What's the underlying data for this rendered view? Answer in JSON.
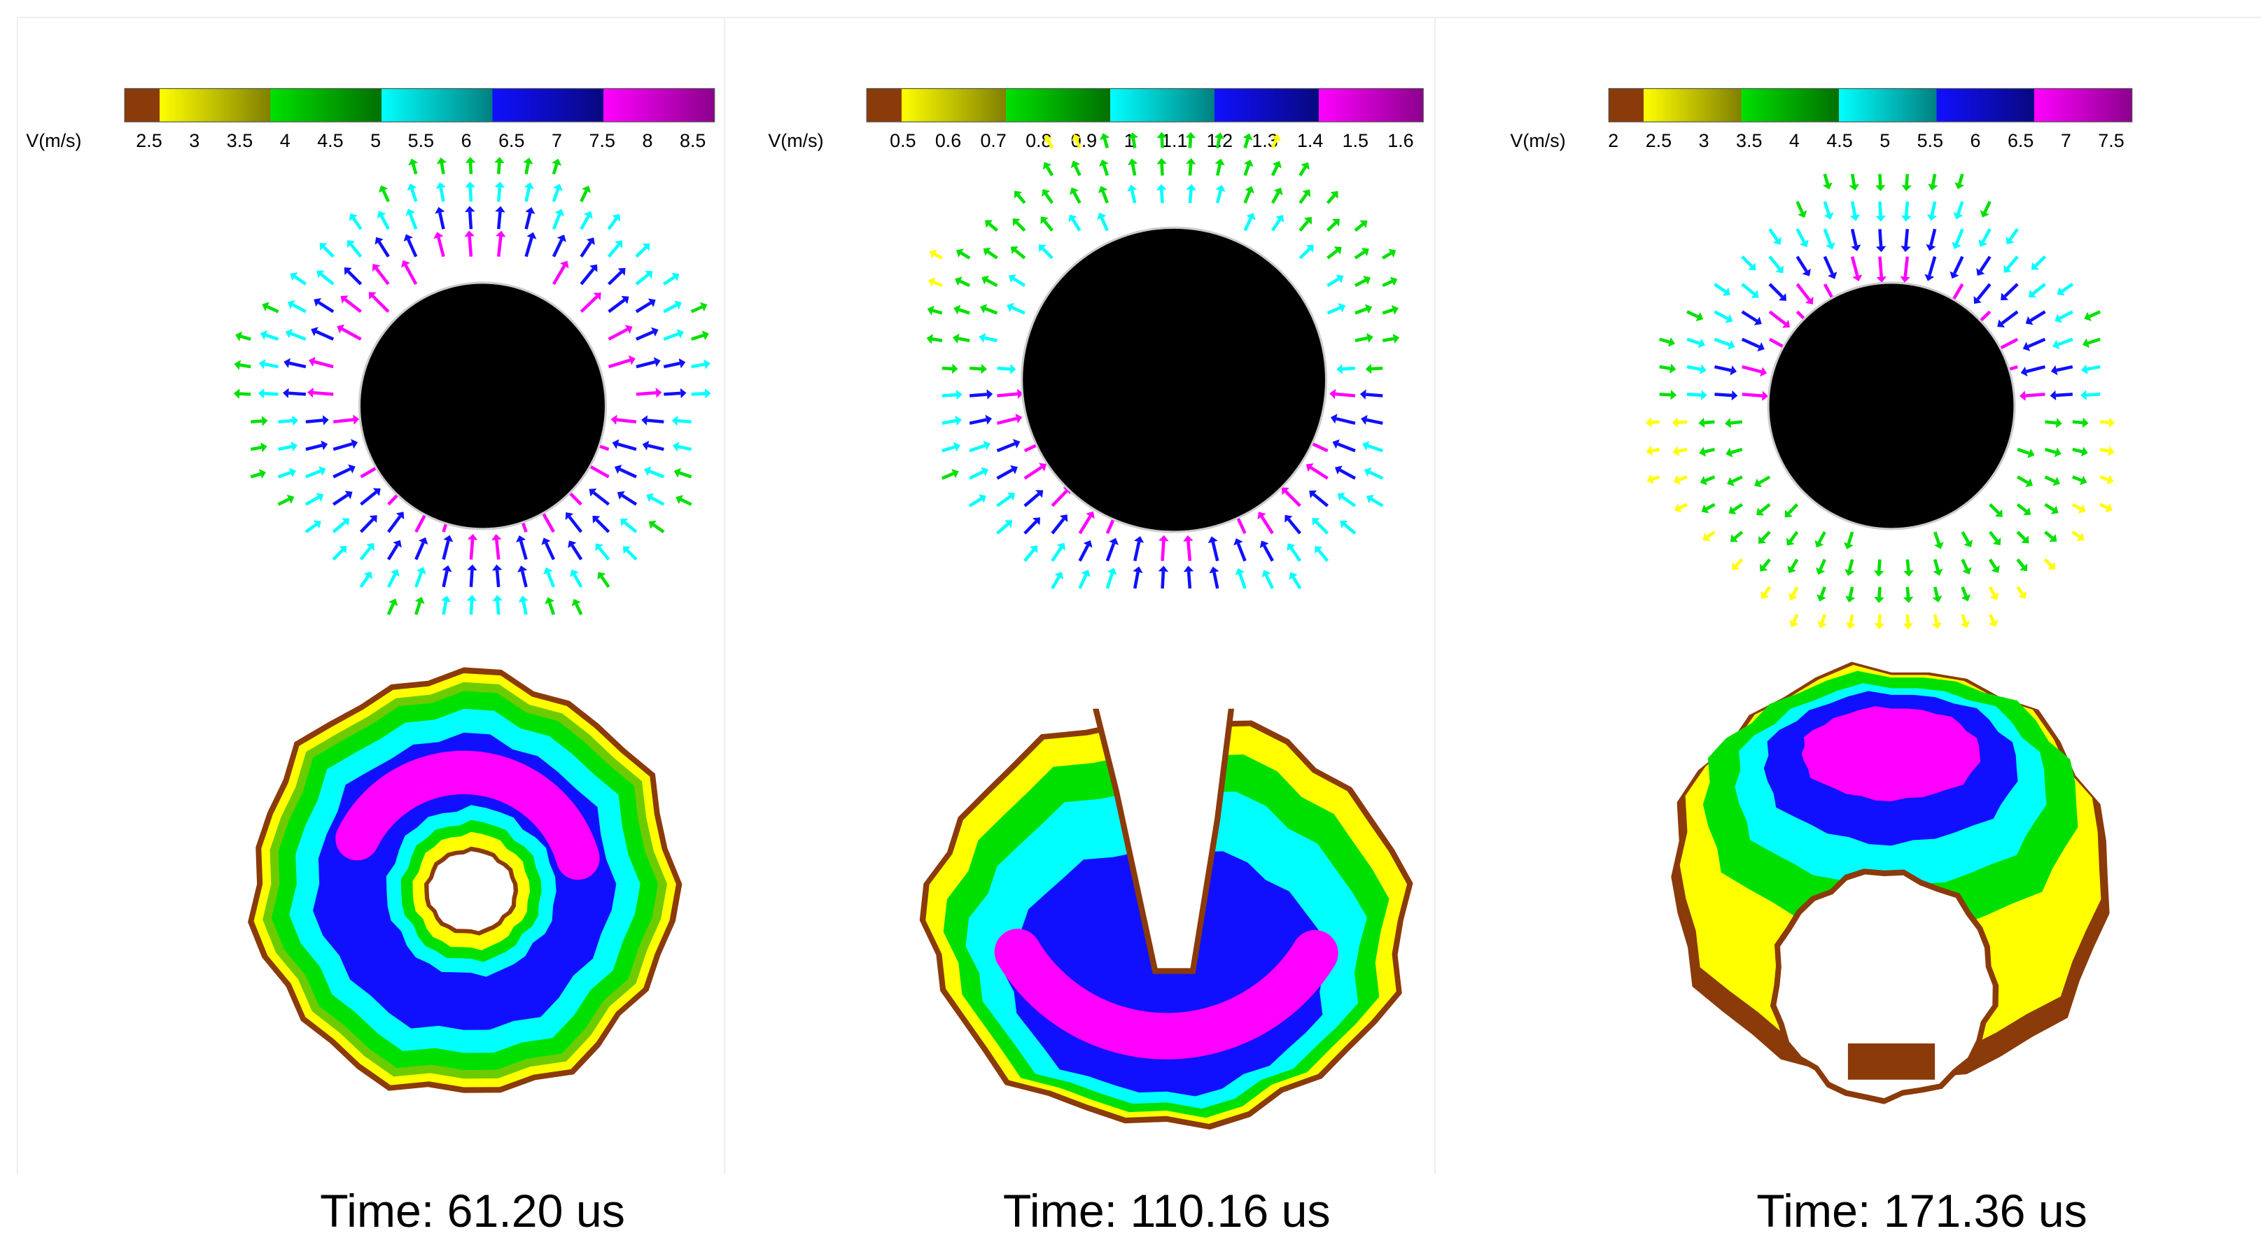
{
  "panels": [
    {
      "colorbar": {
        "label": "V(m/s)",
        "lim": [
          2.23,
          8.74
        ],
        "ticks": [
          2.5,
          3,
          3.5,
          4,
          4.5,
          5,
          5.5,
          6,
          6.5,
          7,
          7.5,
          8,
          8.5
        ],
        "colors": [
          "#8b3a0a",
          "#ffff00",
          "#00e000",
          "#00ffff",
          "#1010ff",
          "#ff00ff"
        ]
      },
      "caption": "Time: 61.20 us"
    },
    {
      "colorbar": {
        "label": "V(m/s)",
        "lim": [
          0.42,
          1.65
        ],
        "ticks": [
          0.5,
          0.6,
          0.7,
          0.8,
          0.9,
          1,
          1.1,
          1.2,
          1.3,
          1.4,
          1.5,
          1.6
        ],
        "colors": [
          "#8b3a0a",
          "#ffff00",
          "#00e000",
          "#00ffff",
          "#1010ff",
          "#ff00ff"
        ]
      },
      "caption": "Time: 110.16 us"
    },
    {
      "colorbar": {
        "label": "V(m/s)",
        "lim": [
          1.95,
          7.73
        ],
        "ticks": [
          2,
          2.5,
          3,
          3.5,
          4,
          4.5,
          5,
          5.5,
          6,
          6.5,
          7,
          7.5
        ],
        "colors": [
          "#8b3a0a",
          "#ffff00",
          "#00e000",
          "#00ffff",
          "#1010ff",
          "#ff00ff"
        ]
      },
      "caption": "Time: 171.36 us"
    }
  ]
}
